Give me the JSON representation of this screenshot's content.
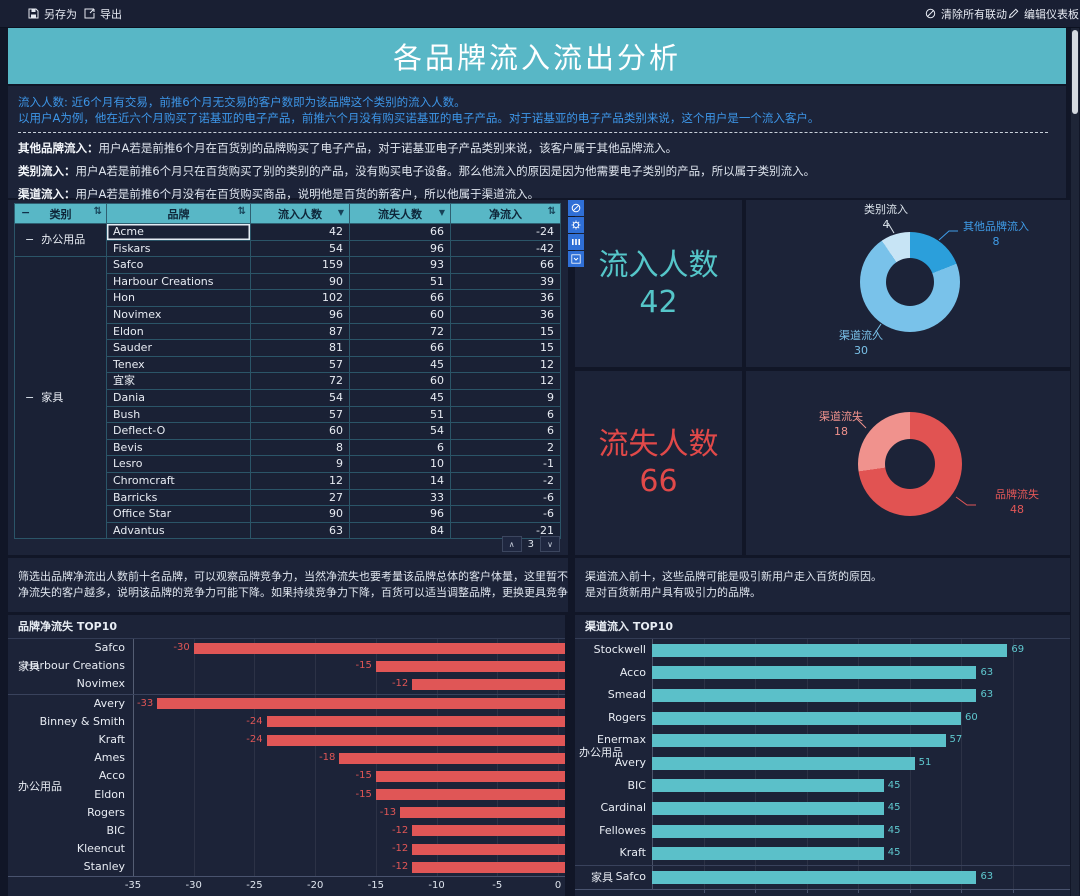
{
  "topbar": {
    "save": "另存为",
    "export": "导出",
    "clear_linkage": "清除所有联动",
    "edit_dashboard": "编辑仪表板"
  },
  "title": "各品牌流入流出分析",
  "intro": {
    "line1": "流入人数: 近6个月有交易，前推6个月无交易的客户数即为该品牌这个类别的流入人数。",
    "line2": "以用户A为例，他在近六个月购买了诺基亚的电子产品，前推六个月没有购买诺基亚的电子产品。对于诺基亚的电子产品类别来说，这个用户是一个流入客户。",
    "defs": [
      {
        "term": "其他品牌流入：",
        "text": "用户A若是前推6个月在百货别的品牌购买了电子产品，对于诺基亚电子产品类别来说，该客户属于其他品牌流入。"
      },
      {
        "term": "类别流入：",
        "text": "用户A若是前推6个月只在百货购买了别的类别的产品，没有购买电子设备。那么他流入的原因是因为他需要电子类别的产品，所以属于类别流入。"
      },
      {
        "term": "渠道流入：",
        "text": "用户A若是前推6个月没有在百货购买商品，说明他是百货的新客户，所以他属于渠道流入。"
      }
    ]
  },
  "table": {
    "headers": [
      "类别",
      "品牌",
      "流入人数",
      "流失人数",
      "净流入"
    ],
    "selected_brand": "Acme",
    "page": "3",
    "groups": [
      {
        "category": "办公用品",
        "rows": [
          [
            "Acme",
            42,
            66,
            -24
          ],
          [
            "Fiskars",
            54,
            96,
            -42
          ]
        ]
      },
      {
        "category": "家具",
        "rows": [
          [
            "Safco",
            159,
            93,
            66
          ],
          [
            "Harbour Creations",
            90,
            51,
            39
          ],
          [
            "Hon",
            102,
            66,
            36
          ],
          [
            "Novimex",
            96,
            60,
            36
          ],
          [
            "Eldon",
            87,
            72,
            15
          ],
          [
            "Sauder",
            81,
            66,
            15
          ],
          [
            "Tenex",
            57,
            45,
            12
          ],
          [
            "宜家",
            72,
            60,
            12
          ],
          [
            "Dania",
            54,
            45,
            9
          ],
          [
            "Bush",
            57,
            51,
            6
          ],
          [
            "Deflect-O",
            60,
            54,
            6
          ],
          [
            "Bevis",
            8,
            6,
            2
          ],
          [
            "Lesro",
            9,
            10,
            -1
          ],
          [
            "Chromcraft",
            12,
            14,
            -2
          ],
          [
            "Barricks",
            27,
            33,
            -6
          ],
          [
            "Office Star",
            90,
            96,
            -6
          ],
          [
            "Advantus",
            63,
            84,
            -21
          ]
        ]
      }
    ]
  },
  "kpis": [
    {
      "label": "流入人数",
      "value": "42",
      "color": "#55c6c9"
    },
    {
      "label": "流失人数",
      "value": "66",
      "color": "#e14949"
    }
  ],
  "notes": {
    "left": [
      "筛选出品牌净流出人数前十名品牌，可以观察品牌竞争力，当然净流失也要考量该品牌总体的客户体量，这里暂不分析。",
      "净流失的客户越多，说明该品牌的竞争力可能下降。如果持续竞争力下降，百货可以适当调整品牌，更换更具竞争力的品牌。"
    ],
    "right": [
      "渠道流入前十，这些品牌可能是吸引新用户走入百货的原因。",
      "是对百货新用户具有吸引力的品牌。"
    ]
  },
  "chart_data": [
    {
      "type": "pie",
      "slices": [
        {
          "label": "其他品牌流入",
          "value": 8,
          "color": "#2b9fdb",
          "label_color": "#3f9ce8"
        },
        {
          "label": "渠道流入",
          "value": 30,
          "color": "#79c2ea",
          "label_color": "#7ac1e8"
        },
        {
          "label": "类别流入",
          "value": 4,
          "color": "#c7e4f5",
          "label_color": "#dce4ec"
        }
      ]
    },
    {
      "type": "pie",
      "slices": [
        {
          "label": "品牌流失",
          "value": 48,
          "color": "#e15352",
          "label_color": "#e25757"
        },
        {
          "label": "渠道流失",
          "value": 18,
          "color": "#f0928d",
          "label_color": "#f0928d"
        }
      ]
    },
    {
      "type": "bar",
      "title": "品牌净流失 TOP10",
      "orientation": "horizontal",
      "bar_color": "#e05656",
      "xlim": [
        -35,
        0
      ],
      "xticks": [
        -35,
        -30,
        -25,
        -20,
        -15,
        -10,
        -5,
        0
      ],
      "groups": [
        {
          "category": "家具",
          "items": [
            {
              "brand": "Safco",
              "value": -30
            },
            {
              "brand": "Harbour Creations",
              "value": -15
            },
            {
              "brand": "Novimex",
              "value": -12
            }
          ]
        },
        {
          "category": "办公用品",
          "items": [
            {
              "brand": "Avery",
              "value": -33
            },
            {
              "brand": "Binney & Smith",
              "value": -24
            },
            {
              "brand": "Kraft",
              "value": -24
            },
            {
              "brand": "Ames",
              "value": -18
            },
            {
              "brand": "Acco",
              "value": -15
            },
            {
              "brand": "Eldon",
              "value": -15
            },
            {
              "brand": "Rogers",
              "value": -13
            },
            {
              "brand": "BIC",
              "value": -12
            },
            {
              "brand": "Kleencut",
              "value": -12
            },
            {
              "brand": "Stanley",
              "value": -12
            }
          ]
        }
      ]
    },
    {
      "type": "bar",
      "title": "渠道流入 TOP10",
      "orientation": "horizontal",
      "bar_color": "#5bc0c9",
      "xlim": [
        0,
        75
      ],
      "grid_step": 10,
      "groups": [
        {
          "category": "办公用品",
          "items": [
            {
              "brand": "Stockwell",
              "value": 69
            },
            {
              "brand": "Acco",
              "value": 63
            },
            {
              "brand": "Smead",
              "value": 63
            },
            {
              "brand": "Rogers",
              "value": 60
            },
            {
              "brand": "Enermax",
              "value": 57
            },
            {
              "brand": "Avery",
              "value": 51
            },
            {
              "brand": "BIC",
              "value": 45
            },
            {
              "brand": "Cardinal",
              "value": 45
            },
            {
              "brand": "Fellowes",
              "value": 45
            },
            {
              "brand": "Kraft",
              "value": 45
            }
          ]
        },
        {
          "category": "家具",
          "items": [
            {
              "brand": "Safco",
              "value": 63
            }
          ]
        }
      ]
    }
  ]
}
